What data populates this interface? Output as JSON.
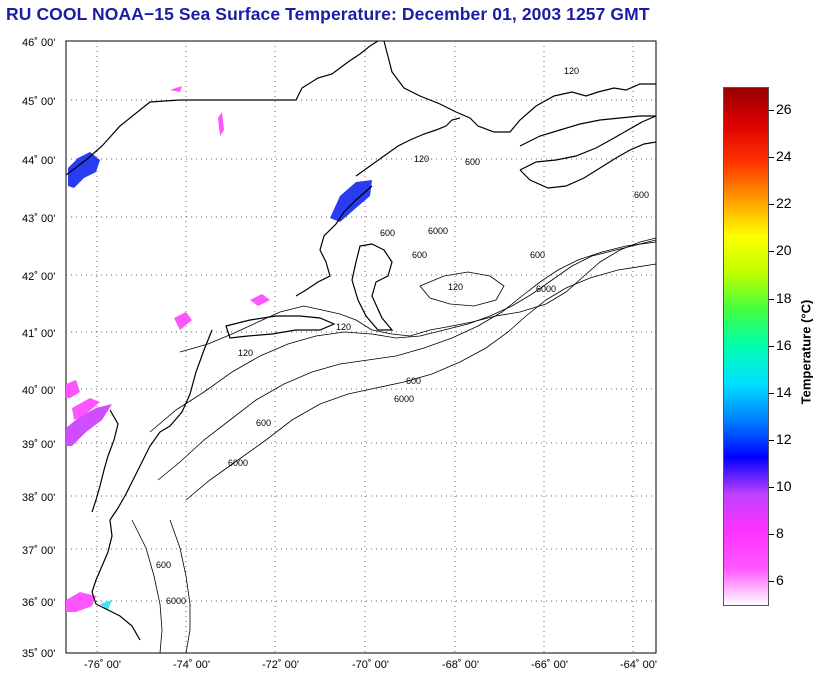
{
  "title": "RU COOL  NOAA−15  Sea Surface Temperature:  December 01, 2003 1257 GMT",
  "map": {
    "lat_labels": [
      "46˚ 00'",
      "45˚ 00'",
      "44˚ 00'",
      "43˚ 00'",
      "42˚ 00'",
      "41˚ 00'",
      "40˚ 00'",
      "39˚ 00'",
      "38˚ 00'",
      "37˚ 00'",
      "36˚ 00'",
      "35˚ 00'"
    ],
    "lon_labels": [
      "-76˚ 00'",
      "-74˚ 00'",
      "-72˚ 00'",
      "-70˚ 00'",
      "-68˚ 00'",
      "-66˚ 00'",
      "-64˚ 00'"
    ],
    "contour_labels": [
      "120",
      "120",
      "600",
      "600",
      "600",
      "6000",
      "120",
      "120",
      "600",
      "6000",
      "600",
      "6000",
      "120",
      "600",
      "6000",
      "600",
      "600",
      "6000"
    ]
  },
  "colorbar": {
    "label": "Temperature (°C)",
    "ticks": [
      "26",
      "24",
      "22",
      "20",
      "18",
      "16",
      "14",
      "12",
      "10",
      "8",
      "6"
    ],
    "range": [
      5,
      27
    ],
    "colors": [
      "#ffffff",
      "#ff55ff",
      "#ff33ff",
      "#c040ff",
      "#0000ff",
      "#0080ff",
      "#00e0ff",
      "#00ffb0",
      "#40ff40",
      "#c0ff00",
      "#ffff00",
      "#ff9900",
      "#ff3300",
      "#dd0000",
      "#990000"
    ]
  }
}
